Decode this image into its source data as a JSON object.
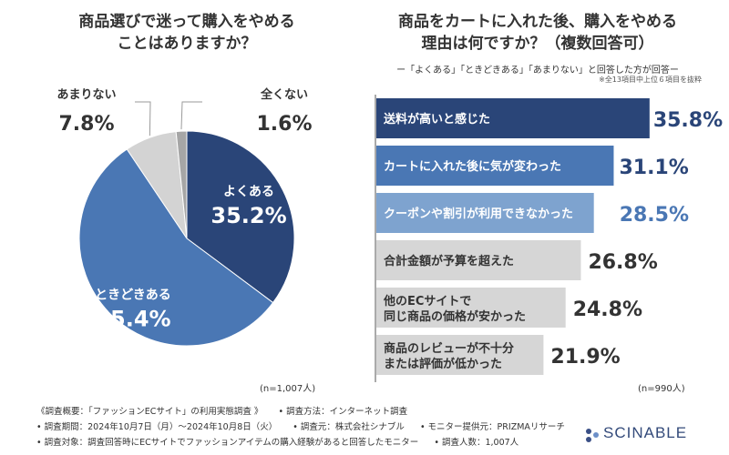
{
  "chart_data": [
    {
      "type": "pie",
      "title_lines": [
        "商品選びで迷って購入をやめる",
        "ことはありますか？"
      ],
      "slices": [
        {
          "label": "よくある",
          "value": 35.2,
          "display": "35.2%",
          "color": "#2a4578"
        },
        {
          "label": "ときどきある",
          "value": 55.4,
          "display": "55.4%",
          "color": "#4a77b4"
        },
        {
          "label": "あまりない",
          "value": 7.8,
          "display": "7.8%",
          "color": "#d3d3d3"
        },
        {
          "label": "全くない",
          "value": 1.6,
          "display": "1.6%",
          "color": "#a6a6a6"
        }
      ],
      "n_label": "(n=1,007人)"
    },
    {
      "type": "bar",
      "orientation": "horizontal",
      "title_lines": [
        "商品をカートに入れた後、購入をやめる",
        "理由は何ですか？（複数回答可）"
      ],
      "subtitle": "ー「よくある」「ときどきある」「あまりない」と回答した方が回答ー",
      "note": "※全13項目中上位６項目を抜粋",
      "categories": [
        [
          "送料が高いと感じた"
        ],
        [
          "カートに入れた後に気が変わった"
        ],
        [
          "クーポンや割引が利用できなかった"
        ],
        [
          "合計金額が予算を超えた"
        ],
        [
          "他のECサイトで",
          "同じ商品の価格が安かった"
        ],
        [
          "商品のレビューが不十分",
          "または評価が低かった"
        ]
      ],
      "values": [
        35.8,
        31.1,
        28.5,
        26.8,
        24.8,
        21.9
      ],
      "value_labels": [
        "35.8%",
        "31.1%",
        "28.5%",
        "26.8%",
        "24.8%",
        "21.9%"
      ],
      "bar_colors": [
        "#2a4578",
        "#4a77b4",
        "#7ea3cf",
        "#d6d6d6",
        "#d6d6d6",
        "#d6d6d6"
      ],
      "label_colors": [
        "#ffffff",
        "#ffffff",
        "#ffffff",
        "#333333",
        "#333333",
        "#333333"
      ],
      "value_colors": [
        "#2a4578",
        "#2a4578",
        "#4a77b4",
        "#333333",
        "#333333",
        "#333333"
      ],
      "xlim": [
        0,
        40
      ],
      "n_label": "(n=990人)"
    }
  ],
  "footer": {
    "rows": [
      [
        "《調査概要：「ファッションECサイト」の利用実態調査 》",
        "• 調査方法：インターネット調査"
      ],
      [
        "• 調査期間：2024年10月7日（月）〜2024年10月8日（火）",
        "• 調査元：株式会社シナブル",
        "• モニター提供元：PRIZMAリサーチ"
      ],
      [
        "• 調査対象：調査回答時にECサイトでファッションアイテムの購入経験があると回答したモニター",
        "• 調査人数：1,007人"
      ]
    ]
  },
  "brand": {
    "name": "SCINABLE"
  }
}
